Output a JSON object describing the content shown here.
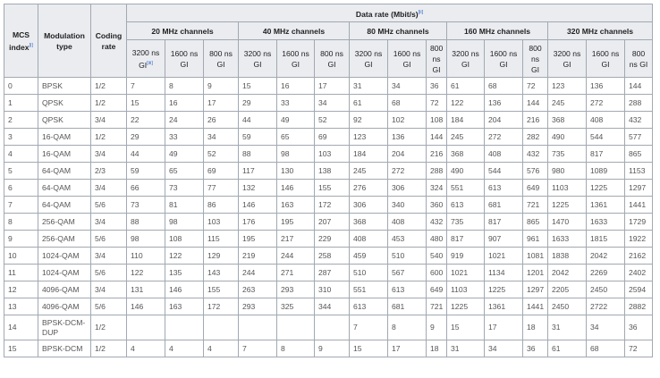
{
  "header": {
    "mcs_index": "MCS index",
    "mcs_ref": "[i]",
    "modulation": "Modulation type",
    "coding": "Coding rate",
    "data_rate": "Data rate (Mbit/s)",
    "data_rate_ref": "[ii]",
    "channels": [
      "20 MHz channels",
      "40 MHz channels",
      "80 MHz channels",
      "160 MHz channels",
      "320 MHz channels"
    ],
    "gi_3200": "3200 ns GI",
    "gi_3200_ref": "[iii]",
    "gi_1600": "1600 ns GI",
    "gi_800": "800 ns GI"
  },
  "rows": [
    [
      "0",
      "BPSK",
      "1/2",
      "7",
      "8",
      "9",
      "15",
      "16",
      "17",
      "31",
      "34",
      "36",
      "61",
      "68",
      "72",
      "123",
      "136",
      "144"
    ],
    [
      "1",
      "QPSK",
      "1/2",
      "15",
      "16",
      "17",
      "29",
      "33",
      "34",
      "61",
      "68",
      "72",
      "122",
      "136",
      "144",
      "245",
      "272",
      "288"
    ],
    [
      "2",
      "QPSK",
      "3/4",
      "22",
      "24",
      "26",
      "44",
      "49",
      "52",
      "92",
      "102",
      "108",
      "184",
      "204",
      "216",
      "368",
      "408",
      "432"
    ],
    [
      "3",
      "16-QAM",
      "1/2",
      "29",
      "33",
      "34",
      "59",
      "65",
      "69",
      "123",
      "136",
      "144",
      "245",
      "272",
      "282",
      "490",
      "544",
      "577"
    ],
    [
      "4",
      "16-QAM",
      "3/4",
      "44",
      "49",
      "52",
      "88",
      "98",
      "103",
      "184",
      "204",
      "216",
      "368",
      "408",
      "432",
      "735",
      "817",
      "865"
    ],
    [
      "5",
      "64-QAM",
      "2/3",
      "59",
      "65",
      "69",
      "117",
      "130",
      "138",
      "245",
      "272",
      "288",
      "490",
      "544",
      "576",
      "980",
      "1089",
      "1153"
    ],
    [
      "6",
      "64-QAM",
      "3/4",
      "66",
      "73",
      "77",
      "132",
      "146",
      "155",
      "276",
      "306",
      "324",
      "551",
      "613",
      "649",
      "1103",
      "1225",
      "1297"
    ],
    [
      "7",
      "64-QAM",
      "5/6",
      "73",
      "81",
      "86",
      "146",
      "163",
      "172",
      "306",
      "340",
      "360",
      "613",
      "681",
      "721",
      "1225",
      "1361",
      "1441"
    ],
    [
      "8",
      "256-QAM",
      "3/4",
      "88",
      "98",
      "103",
      "176",
      "195",
      "207",
      "368",
      "408",
      "432",
      "735",
      "817",
      "865",
      "1470",
      "1633",
      "1729"
    ],
    [
      "9",
      "256-QAM",
      "5/6",
      "98",
      "108",
      "115",
      "195",
      "217",
      "229",
      "408",
      "453",
      "480",
      "817",
      "907",
      "961",
      "1633",
      "1815",
      "1922"
    ],
    [
      "10",
      "1024-QAM",
      "3/4",
      "110",
      "122",
      "129",
      "219",
      "244",
      "258",
      "459",
      "510",
      "540",
      "919",
      "1021",
      "1081",
      "1838",
      "2042",
      "2162"
    ],
    [
      "11",
      "1024-QAM",
      "5/6",
      "122",
      "135",
      "143",
      "244",
      "271",
      "287",
      "510",
      "567",
      "600",
      "1021",
      "1134",
      "1201",
      "2042",
      "2269",
      "2402"
    ],
    [
      "12",
      "4096-QAM",
      "3/4",
      "131",
      "146",
      "155",
      "263",
      "293",
      "310",
      "551",
      "613",
      "649",
      "1103",
      "1225",
      "1297",
      "2205",
      "2450",
      "2594"
    ],
    [
      "13",
      "4096-QAM",
      "5/6",
      "146",
      "163",
      "172",
      "293",
      "325",
      "344",
      "613",
      "681",
      "721",
      "1225",
      "1361",
      "1441",
      "2450",
      "2722",
      "2882"
    ],
    [
      "14",
      "BPSK-DCM-DUP",
      "1/2",
      "",
      "",
      "",
      "",
      "",
      "",
      "7",
      "8",
      "9",
      "15",
      "17",
      "18",
      "31",
      "34",
      "36"
    ],
    [
      "15",
      "BPSK-DCM",
      "1/2",
      "4",
      "4",
      "4",
      "7",
      "8",
      "9",
      "15",
      "17",
      "18",
      "31",
      "34",
      "36",
      "61",
      "68",
      "72"
    ]
  ]
}
